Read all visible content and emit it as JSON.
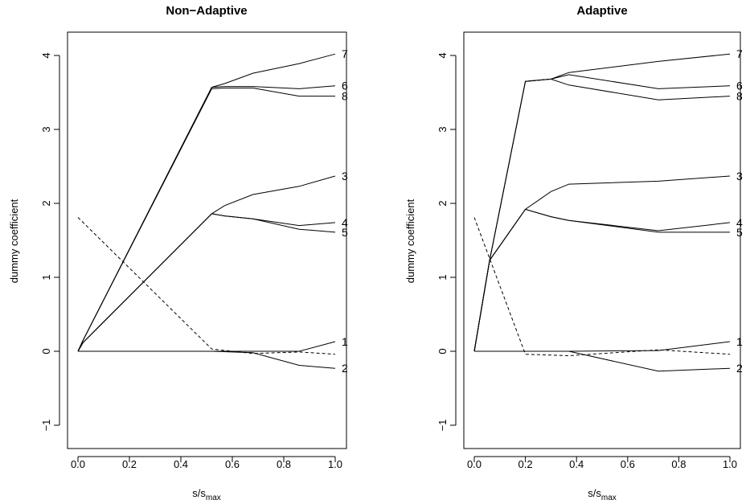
{
  "chart_data": [
    {
      "type": "line",
      "title": "Non−Adaptive",
      "xlabel": "s/s",
      "xlabel_sub": "max",
      "ylabel": "dummy coefficient",
      "xlim": [
        0.0,
        1.0
      ],
      "ylim": [
        -1,
        4
      ],
      "xticks": [
        "0.0",
        "0.2",
        "0.4",
        "0.6",
        "0.8",
        "1.0"
      ],
      "yticks": [
        "−1",
        "0",
        "1",
        "2",
        "3",
        "4"
      ],
      "grid": false,
      "legend": "none",
      "series": [
        {
          "name": "7",
          "style": "solid",
          "x": [
            0,
            0.02,
            0.52,
            0.57,
            0.68,
            0.86,
            1.0
          ],
          "y": [
            0,
            0.15,
            3.57,
            3.62,
            3.76,
            3.89,
            4.02
          ]
        },
        {
          "name": "6",
          "style": "solid",
          "x": [
            0,
            0.02,
            0.52,
            0.57,
            0.68,
            0.86,
            1.0
          ],
          "y": [
            0,
            0.15,
            3.57,
            3.58,
            3.58,
            3.55,
            3.59
          ]
        },
        {
          "name": "8",
          "style": "solid",
          "x": [
            0,
            0.02,
            0.52,
            0.57,
            0.68,
            0.86,
            1.0
          ],
          "y": [
            0,
            0.15,
            3.55,
            3.56,
            3.56,
            3.45,
            3.45
          ]
        },
        {
          "name": "3",
          "style": "solid",
          "x": [
            0,
            0.02,
            0.52,
            0.57,
            0.68,
            0.86,
            1.0
          ],
          "y": [
            0,
            0.12,
            1.86,
            1.97,
            2.12,
            2.23,
            2.37
          ]
        },
        {
          "name": "4",
          "style": "solid",
          "x": [
            0,
            0.02,
            0.52,
            0.57,
            0.68,
            0.86,
            1.0
          ],
          "y": [
            0,
            0.12,
            1.86,
            1.83,
            1.79,
            1.7,
            1.74
          ]
        },
        {
          "name": "5",
          "style": "solid",
          "x": [
            0,
            0.02,
            0.52,
            0.57,
            0.68,
            0.86,
            1.0
          ],
          "y": [
            0,
            0.12,
            1.86,
            1.83,
            1.79,
            1.65,
            1.61
          ]
        },
        {
          "name": "1",
          "style": "solid",
          "x": [
            0,
            0.52,
            0.68,
            0.86,
            1.0
          ],
          "y": [
            0,
            0,
            0,
            0,
            0.13
          ]
        },
        {
          "name": "2",
          "style": "solid",
          "x": [
            0,
            0.52,
            0.68,
            0.86,
            1.0
          ],
          "y": [
            0,
            0,
            -0.02,
            -0.19,
            -0.23
          ]
        },
        {
          "name": "",
          "style": "dashed",
          "x": [
            0,
            0.52,
            0.68,
            0.86,
            1.0
          ],
          "y": [
            1.81,
            0.03,
            -0.03,
            -0.01,
            -0.04
          ]
        }
      ]
    },
    {
      "type": "line",
      "title": "Adaptive",
      "xlabel": "s/s",
      "xlabel_sub": "max",
      "ylabel": "dummy coefficient",
      "xlim": [
        0.0,
        1.0
      ],
      "ylim": [
        -1,
        4
      ],
      "xticks": [
        "0.0",
        "0.2",
        "0.4",
        "0.6",
        "0.8",
        "1.0"
      ],
      "yticks": [
        "−1",
        "0",
        "1",
        "2",
        "3",
        "4"
      ],
      "grid": false,
      "legend": "none",
      "series": [
        {
          "name": "7",
          "style": "solid",
          "x": [
            0,
            0.06,
            0.2,
            0.3,
            0.37,
            0.72,
            1.0
          ],
          "y": [
            0,
            1.23,
            3.65,
            3.68,
            3.77,
            3.92,
            4.02
          ]
        },
        {
          "name": "6",
          "style": "solid",
          "x": [
            0,
            0.06,
            0.2,
            0.3,
            0.37,
            0.72,
            1.0
          ],
          "y": [
            0,
            1.23,
            3.65,
            3.68,
            3.74,
            3.55,
            3.59
          ]
        },
        {
          "name": "8",
          "style": "solid",
          "x": [
            0,
            0.06,
            0.2,
            0.3,
            0.37,
            0.72,
            1.0
          ],
          "y": [
            0,
            1.23,
            3.65,
            3.68,
            3.6,
            3.4,
            3.45
          ]
        },
        {
          "name": "3",
          "style": "solid",
          "x": [
            0,
            0.06,
            0.2,
            0.3,
            0.37,
            0.72,
            1.0
          ],
          "y": [
            0,
            1.23,
            1.92,
            2.16,
            2.26,
            2.3,
            2.37
          ]
        },
        {
          "name": "4",
          "style": "solid",
          "x": [
            0,
            0.06,
            0.2,
            0.3,
            0.37,
            0.72,
            1.0
          ],
          "y": [
            0,
            1.23,
            1.92,
            1.82,
            1.77,
            1.63,
            1.74
          ]
        },
        {
          "name": "5",
          "style": "solid",
          "x": [
            0,
            0.06,
            0.2,
            0.3,
            0.37,
            0.72,
            1.0
          ],
          "y": [
            0,
            1.23,
            1.92,
            1.82,
            1.77,
            1.61,
            1.61
          ]
        },
        {
          "name": "1",
          "style": "solid",
          "x": [
            0,
            0.2,
            0.37,
            0.72,
            1.0
          ],
          "y": [
            0,
            0,
            0,
            0.01,
            0.13
          ]
        },
        {
          "name": "2",
          "style": "solid",
          "x": [
            0,
            0.2,
            0.37,
            0.72,
            1.0
          ],
          "y": [
            0,
            0,
            0,
            -0.27,
            -0.23
          ]
        },
        {
          "name": "",
          "style": "dashed",
          "x": [
            0,
            0.2,
            0.37,
            0.72,
            1.0
          ],
          "y": [
            1.81,
            -0.04,
            -0.06,
            0.02,
            -0.04
          ]
        }
      ]
    }
  ]
}
